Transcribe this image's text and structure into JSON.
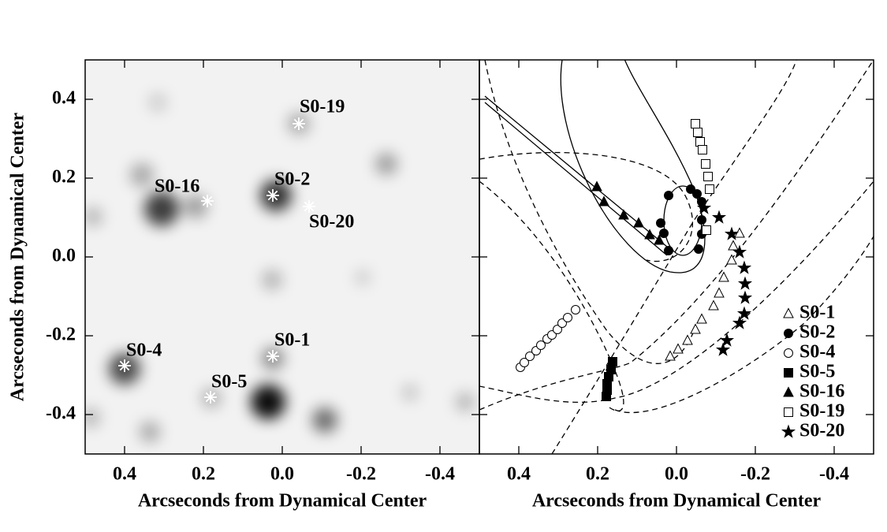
{
  "chart_data": [
    {
      "type": "scatter",
      "xlabel": "Arcseconds from Dynamical Center",
      "ylabel": "Arcseconds from Dynamical Center",
      "xlim": [
        0.5,
        -0.5
      ],
      "ylim": [
        -0.5,
        0.5
      ],
      "xticks": [
        0.4,
        0.2,
        {
          "value": 0,
          "label": "0.0"
        },
        -0.2,
        -0.4
      ],
      "yticks": [
        -0.4,
        -0.2,
        {
          "value": 0,
          "label": "0.0"
        },
        0.2,
        0.4
      ],
      "color": "#ffffff",
      "marker": "asterisk",
      "labels": [
        "S0-19",
        "S0-16",
        "S0-2",
        "S0-20",
        "S0-4",
        "S0-1",
        "S0-5"
      ],
      "x": [
        -0.042,
        0.19,
        0.024,
        -0.068,
        0.4,
        0.024,
        0.182
      ],
      "values": [
        0.338,
        0.142,
        0.156,
        0.128,
        -0.276,
        -0.252,
        -0.356
      ]
    },
    {
      "type": "scatter",
      "xlabel": "Arcseconds from Dynamical Center",
      "xlim": [
        0.5,
        -0.5
      ],
      "ylim": [
        -0.5,
        0.5
      ],
      "xticks": [
        0.4,
        0.2,
        {
          "value": 0,
          "label": "0.0"
        },
        -0.2,
        -0.4
      ],
      "yticks": [
        -0.4,
        -0.2,
        0,
        0.2,
        0.4
      ],
      "legend": "lower right",
      "series": [
        {
          "name": "S0-1",
          "marker": "triangle-open",
          "color": "#000000",
          "x": [
            -0.16,
            -0.144,
            -0.14,
            -0.12,
            -0.108,
            -0.094,
            -0.064,
            -0.048,
            -0.028,
            -0.004,
            0.016
          ],
          "values": [
            0.06,
            0.028,
            -0.008,
            -0.052,
            -0.092,
            -0.124,
            -0.158,
            -0.184,
            -0.212,
            -0.234,
            -0.252
          ]
        },
        {
          "name": "S0-2",
          "marker": "circle-filled",
          "color": "#000000",
          "x": [
            0.02,
            -0.036,
            -0.052,
            -0.064,
            -0.064,
            -0.064,
            -0.056,
            0.02,
            0.04,
            0.032
          ],
          "values": [
            0.156,
            0.172,
            0.16,
            0.14,
            0.094,
            0.058,
            0.02,
            0.016,
            0.086,
            0.06
          ]
        },
        {
          "name": "S0-4",
          "marker": "circle-open",
          "color": "#000000",
          "x": [
            0.396,
            0.386,
            0.372,
            0.356,
            0.344,
            0.328,
            0.316,
            0.302,
            0.29,
            0.276,
            0.256
          ],
          "values": [
            -0.28,
            -0.268,
            -0.252,
            -0.238,
            -0.224,
            -0.208,
            -0.198,
            -0.184,
            -0.168,
            -0.154,
            -0.134
          ]
        },
        {
          "name": "S0-5",
          "marker": "square-filled",
          "color": "#000000",
          "x": [
            0.162,
            0.166,
            0.172,
            0.176,
            0.176,
            0.178
          ],
          "values": [
            -0.266,
            -0.286,
            -0.304,
            -0.322,
            -0.338,
            -0.354
          ]
        },
        {
          "name": "S0-16",
          "marker": "triangle-filled",
          "color": "#000000",
          "x": [
            0.202,
            0.184,
            0.134,
            0.096,
            0.068,
            0.044
          ],
          "values": [
            0.178,
            0.14,
            0.106,
            0.086,
            0.056,
            0.042
          ]
        },
        {
          "name": "S0-19",
          "marker": "square-open",
          "color": "#000000",
          "x": [
            -0.048,
            -0.054,
            -0.06,
            -0.066,
            -0.074,
            -0.08,
            -0.084,
            -0.076
          ],
          "values": [
            0.338,
            0.316,
            0.292,
            0.272,
            0.236,
            0.204,
            0.172,
            0.068
          ]
        },
        {
          "name": "S0-20",
          "marker": "star-filled",
          "color": "#000000",
          "x": [
            -0.07,
            -0.108,
            -0.14,
            -0.16,
            -0.172,
            -0.174,
            -0.174,
            -0.172,
            -0.16,
            -0.128,
            -0.118
          ],
          "values": [
            0.124,
            0.1,
            0.058,
            0.012,
            -0.028,
            -0.068,
            -0.104,
            -0.144,
            -0.168,
            -0.212,
            -0.236
          ]
        }
      ]
    }
  ]
}
